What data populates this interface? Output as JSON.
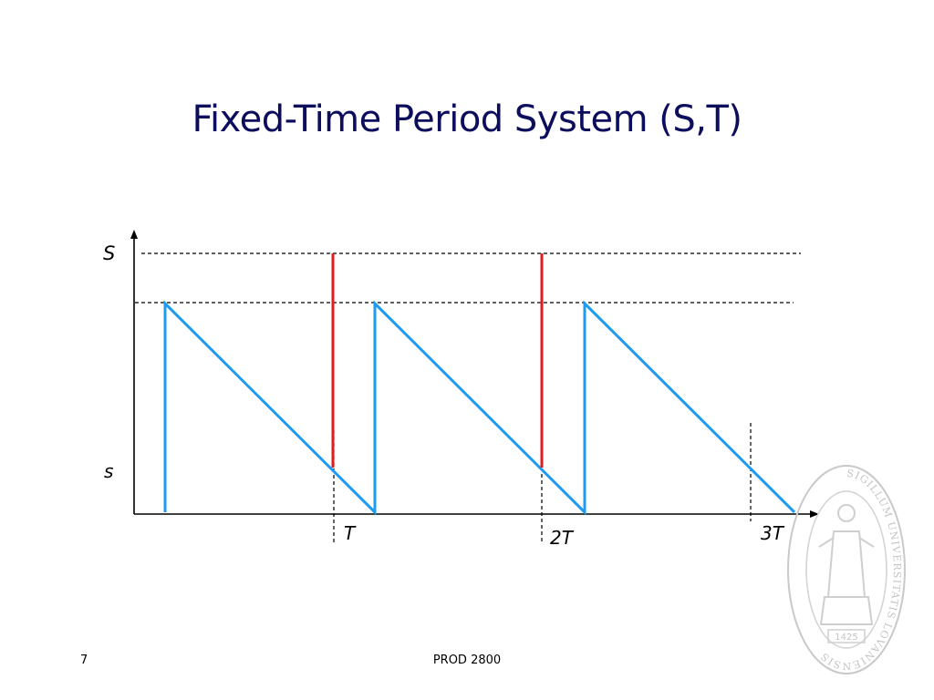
{
  "slide": {
    "title": "Fixed-Time Period System (S,T)",
    "page_number": "7",
    "course": "PROD 2800"
  },
  "diagram": {
    "y_labels": {
      "upper": "S",
      "lower": "s"
    },
    "x_labels": [
      "T",
      "2T",
      "3T"
    ],
    "colors": {
      "stock": "#1e9bf0",
      "order": "#e31b1b",
      "axis": "#000000"
    }
  },
  "seal": {
    "text": "SIGILLUM UNIVERSITATIS LOVANIENSIS",
    "year": "1425"
  }
}
